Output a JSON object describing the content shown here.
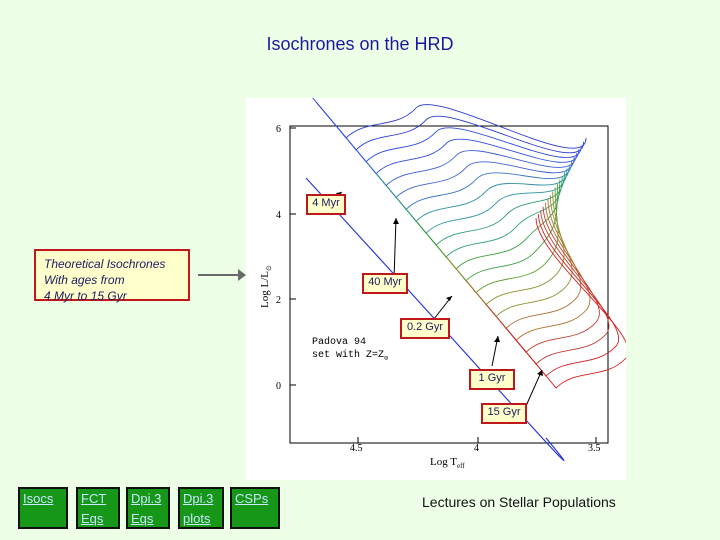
{
  "slide": {
    "title": "Isochrones on the HRD"
  },
  "info_box": {
    "lines": [
      "Theoretical Isochrones",
      "With ages from",
      "4 Myr to 15 Gyr"
    ]
  },
  "age_labels": [
    "4 Myr",
    "40 Myr",
    "0.2 Gyr",
    "1 Gyr",
    "15 Gyr"
  ],
  "plot": {
    "inner_text": [
      "Padova 94",
      "set with Z=Z"
    ],
    "inner_text_sub": "⊙",
    "y_ticks": [
      "6",
      "4",
      "2",
      "0"
    ],
    "x_ticks": [
      "4.5",
      "4",
      "3.5"
    ],
    "ylabel": "Log L/L",
    "ylabel_sub": "⊙",
    "xlabel": "Log T",
    "xlabel_sub": "eff"
  },
  "nav": [
    {
      "lines": [
        "Isocs"
      ]
    },
    {
      "lines": [
        "FCT",
        "Eqs"
      ]
    },
    {
      "lines": [
        "Dpi.3",
        "Eqs"
      ]
    },
    {
      "lines": [
        "Dpi.3",
        "plots"
      ]
    },
    {
      "lines": [
        "CSPs"
      ]
    }
  ],
  "footer": "Lectures on Stellar Populations",
  "colors": {
    "title": "#1a1aa0",
    "nav_bg": "#179717",
    "box_border": "#c01818",
    "box_bg": "#ffffcc"
  }
}
